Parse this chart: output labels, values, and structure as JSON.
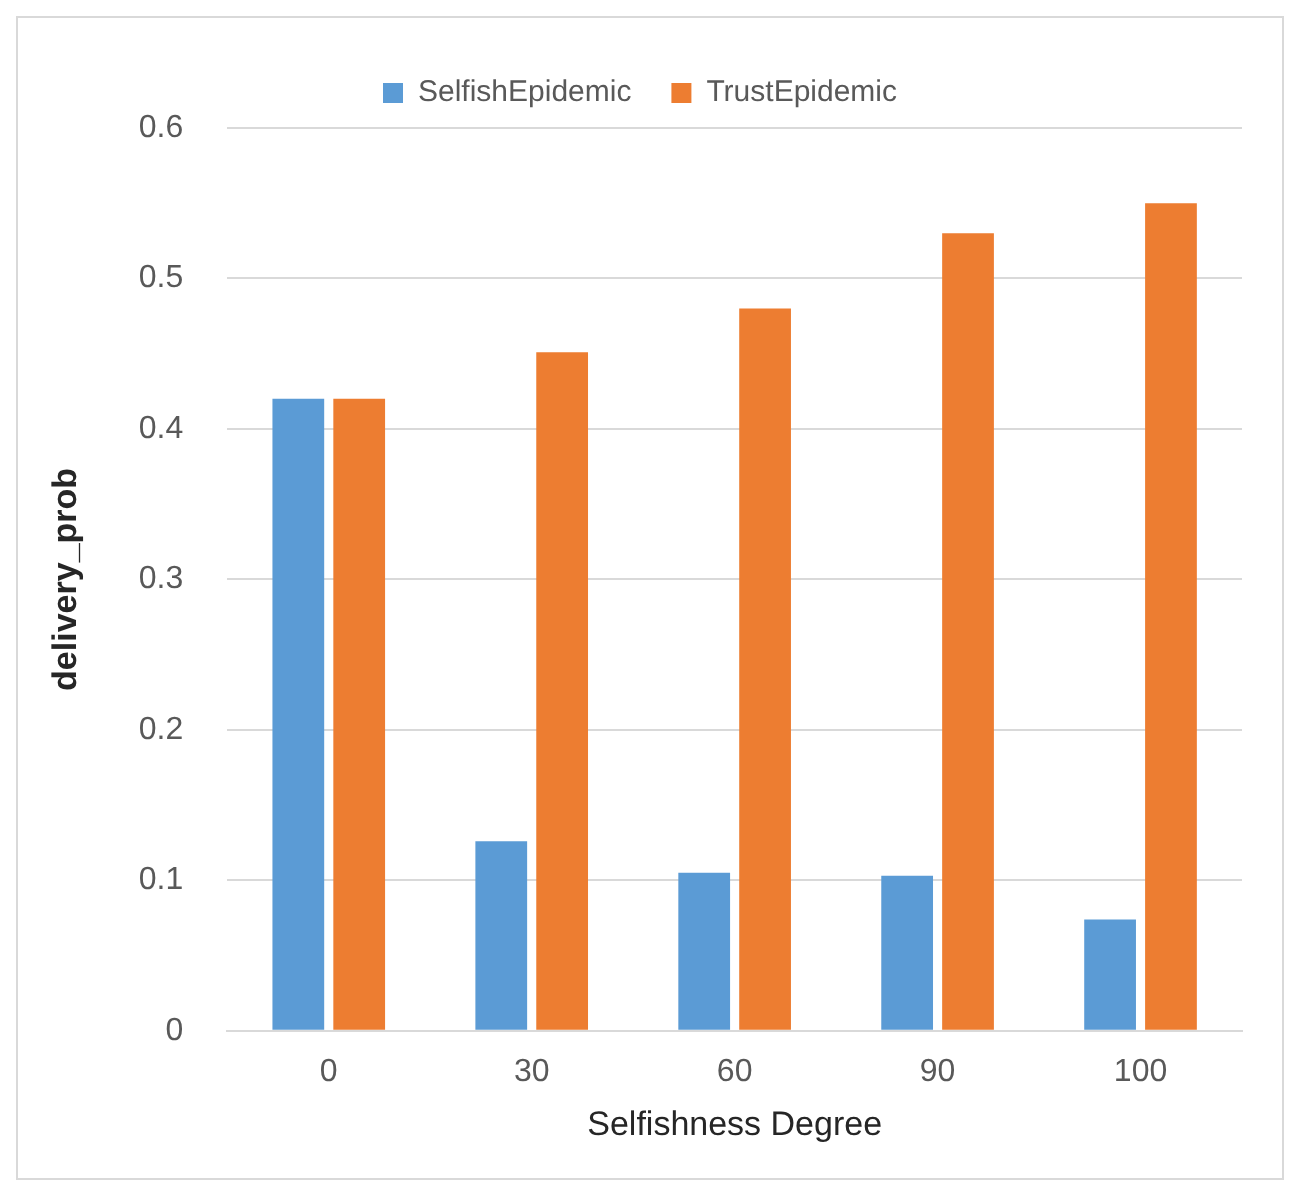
{
  "chart_data": {
    "type": "bar",
    "xlabel": "Selfishness Degree",
    "ylabel": "delivery_prob",
    "categories": [
      "0",
      "30",
      "60",
      "90",
      "100"
    ],
    "series": [
      {
        "name": "SelfishEpidemic",
        "color": "#5b9bd5",
        "values": [
          0.42,
          0.126,
          0.105,
          0.103,
          0.074
        ]
      },
      {
        "name": "TrustEpidemic",
        "color": "#ed7d31",
        "values": [
          0.42,
          0.451,
          0.48,
          0.53,
          0.55
        ]
      }
    ],
    "ylim": [
      0,
      0.6
    ],
    "yticks": [
      0,
      0.1,
      0.2,
      0.3,
      0.4,
      0.5,
      0.6
    ],
    "grid": "y",
    "legend": "top"
  }
}
